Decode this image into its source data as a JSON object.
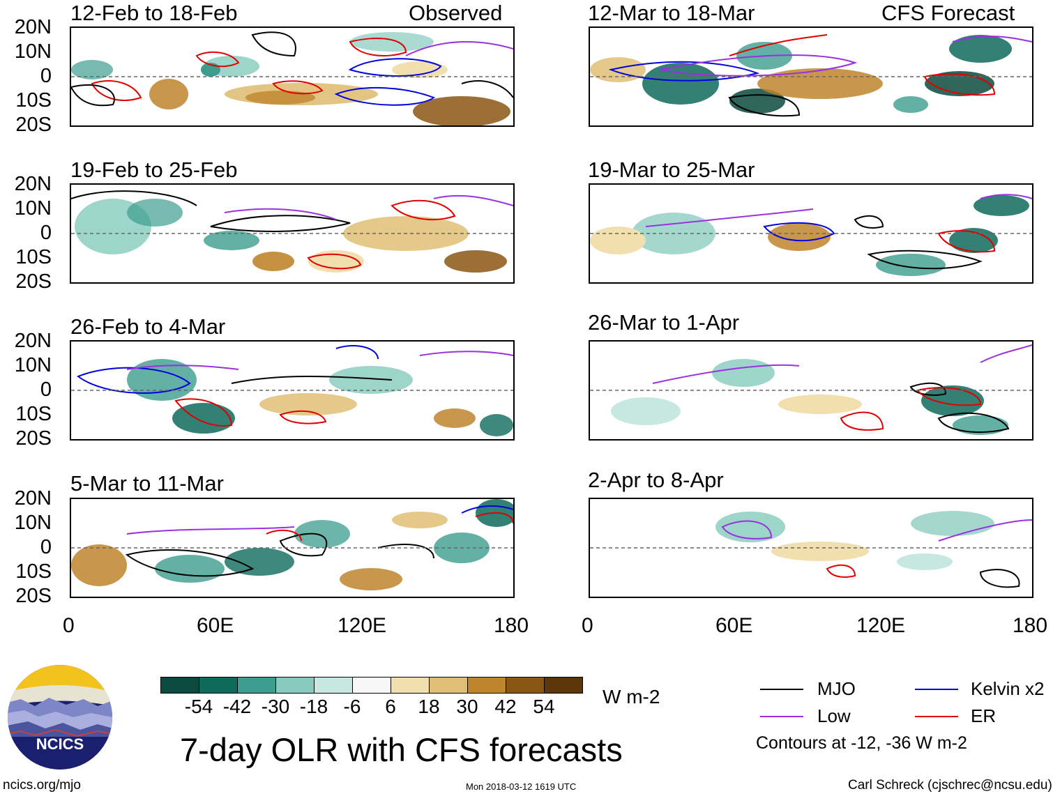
{
  "header": {
    "left_label": "Observed",
    "right_label": "CFS Forecast"
  },
  "panels": {
    "observed": [
      {
        "title": "12-Feb to 18-Feb"
      },
      {
        "title": "19-Feb to 25-Feb"
      },
      {
        "title": "26-Feb to 4-Mar"
      },
      {
        "title": "5-Mar to 11-Mar"
      }
    ],
    "forecast": [
      {
        "title": "12-Mar to 18-Mar"
      },
      {
        "title": "19-Mar to 25-Mar"
      },
      {
        "title": "26-Mar to 1-Apr"
      },
      {
        "title": "2-Apr to 8-Apr"
      }
    ]
  },
  "axes": {
    "lat_labels": [
      "20N",
      "10N",
      "0",
      "10S",
      "20S"
    ],
    "lon_labels": [
      "0",
      "60E",
      "120E",
      "180"
    ]
  },
  "colorbar": {
    "colors": [
      "#0b4a3e",
      "#0f6a5c",
      "#3c9c8e",
      "#86cbbd",
      "#c6e8e0",
      "#f7f7f7",
      "#f1dfaf",
      "#dfbf76",
      "#bf852d",
      "#8a5613",
      "#5a3608"
    ],
    "labels": [
      "-54",
      "-42",
      "-30",
      "-18",
      "-6",
      "6",
      "18",
      "30",
      "42",
      "54"
    ],
    "units": "W m-2"
  },
  "legend": {
    "items": [
      {
        "label": "MJO",
        "color": "#000000"
      },
      {
        "label": "Kelvin x2",
        "color": "#0000e0"
      },
      {
        "label": "Low",
        "color": "#9a30e0"
      },
      {
        "label": "ER",
        "color": "#e00000"
      }
    ],
    "note": "Contours at -12, -36 W m-2"
  },
  "logo": {
    "text": "NCICS"
  },
  "footer": {
    "title": "7-day OLR with CFS forecasts",
    "url": "ncics.org/mjo",
    "timestamp": "Mon 2018-03-12 1619 UTC",
    "credit": "Carl Schreck (cjschrec@ncsu.edu)"
  }
}
